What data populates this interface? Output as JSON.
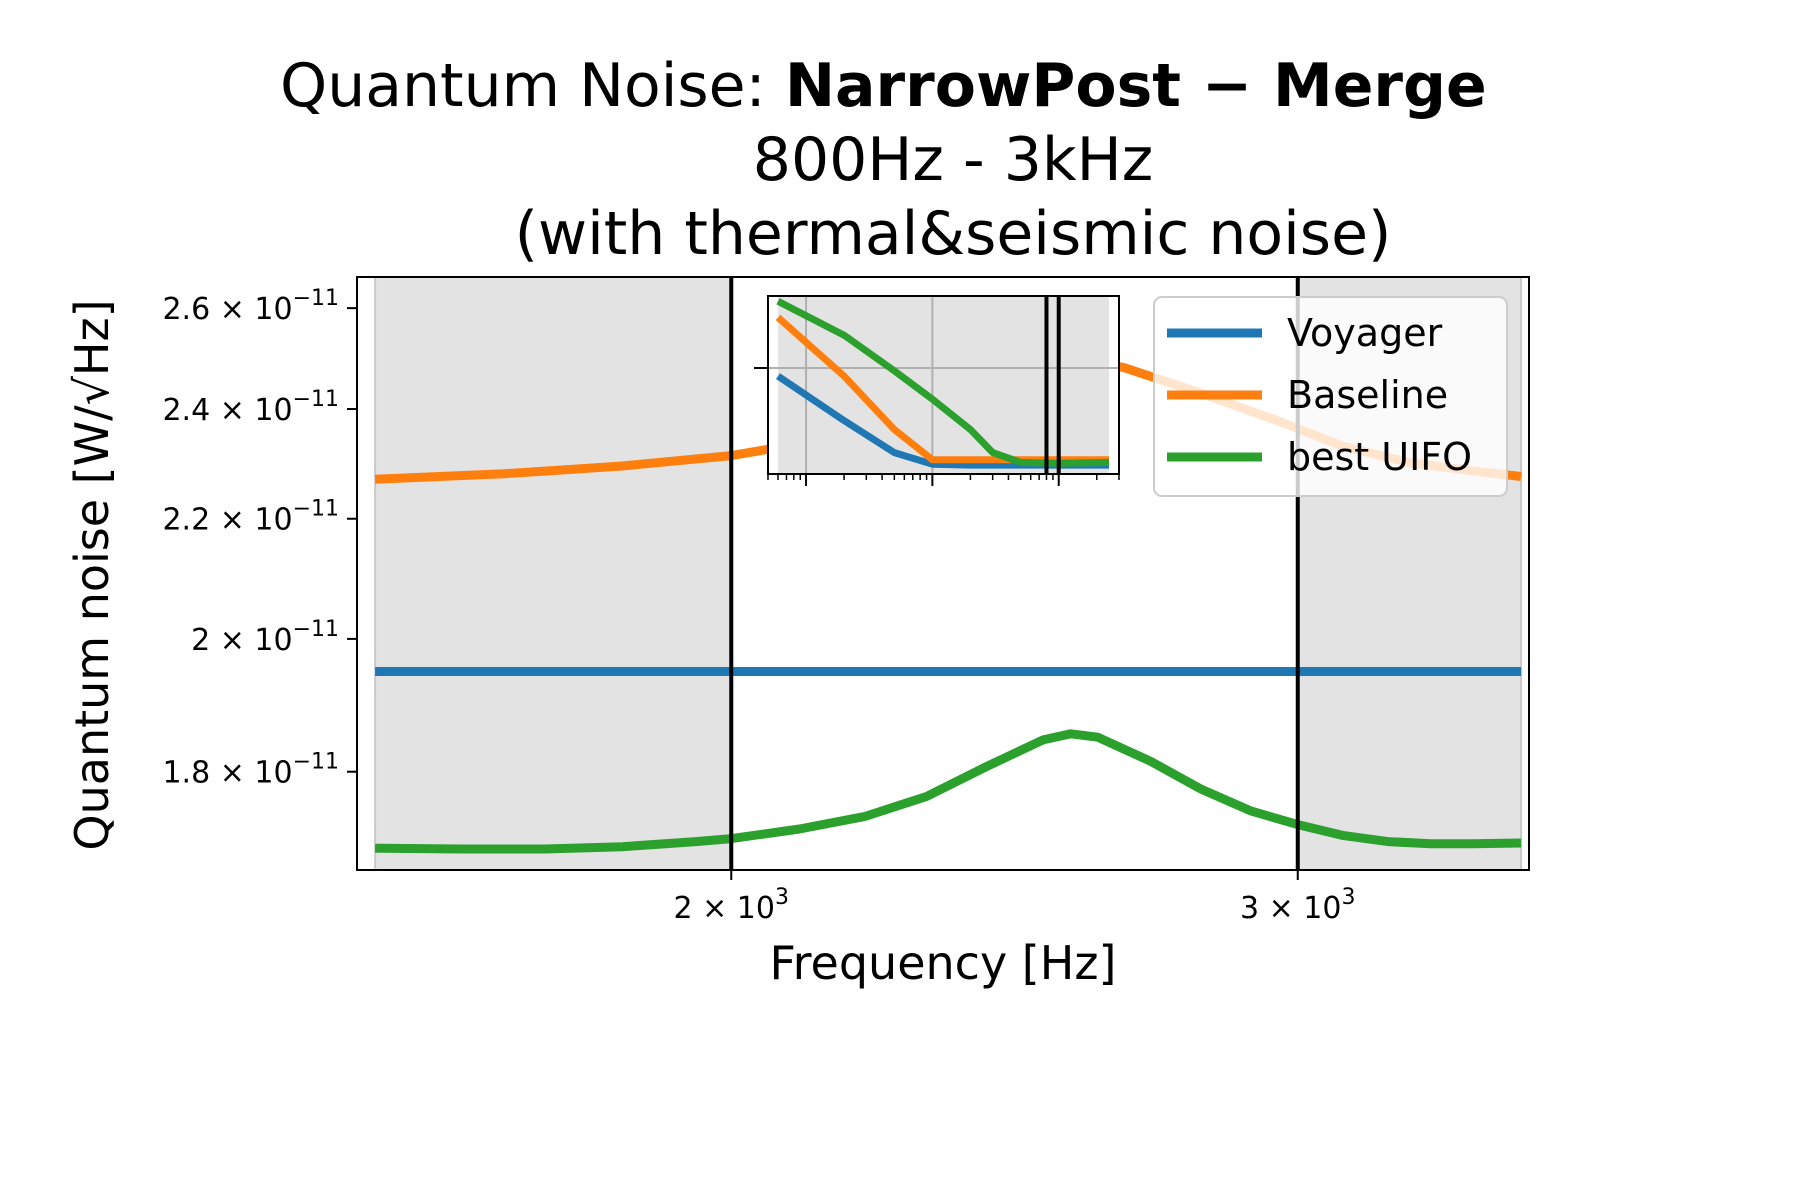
{
  "chart_data": {
    "type": "line",
    "title": {
      "prefix": "Quantum Noise: ",
      "bold": "NarrowPost − Merge",
      "line2": "800Hz - 3kHz",
      "line3": "(with thermal&seismic noise)"
    },
    "xlabel": "Frequency [Hz]",
    "ylabel": "Quantum noise [W/√Hz]",
    "xscale": "log",
    "yscale": "log",
    "xlim": [
      1530,
      3540
    ],
    "ylim": [
      1.665e-11,
      2.665e-11
    ],
    "grid": false,
    "legend_position": "top-right",
    "x_ticks": [
      {
        "value": 2000,
        "base": "2 × 10",
        "exp": "3"
      },
      {
        "value": 3000,
        "base": "3 × 10",
        "exp": "3"
      }
    ],
    "y_ticks": [
      {
        "value": 1.8e-11,
        "base": "1.8 × 10",
        "exp": "−11"
      },
      {
        "value": 2e-11,
        "base": "2 × 10",
        "exp": "−11"
      },
      {
        "value": 2.2e-11,
        "base": "2.2 × 10",
        "exp": "−11"
      },
      {
        "value": 2.4e-11,
        "base": "2.4 × 10",
        "exp": "−11"
      },
      {
        "value": 2.6e-11,
        "base": "2.6 × 10",
        "exp": "−11"
      }
    ],
    "shaded_regions": [
      [
        1550,
        2000
      ],
      [
        3000,
        3520
      ]
    ],
    "vertical_lines": [
      2000,
      3000
    ],
    "series": [
      {
        "name": "Voyager",
        "color": "#1f77b4",
        "x": [
          1550,
          3520
        ],
        "y": [
          1.949e-11,
          1.949e-11
        ]
      },
      {
        "name": "Baseline",
        "color": "#ff7f0e",
        "x": [
          1550,
          1700,
          1850,
          2000,
          2150,
          2300,
          2450,
          2550,
          2650,
          2800,
          2950,
          3100,
          3250,
          3400,
          3520
        ],
        "y": [
          2.27e-11,
          2.28e-11,
          2.294e-11,
          2.313e-11,
          2.345e-11,
          2.4e-11,
          2.46e-11,
          2.5e-11,
          2.48e-11,
          2.43e-11,
          2.38e-11,
          2.33e-11,
          2.3e-11,
          2.285e-11,
          2.275e-11
        ]
      },
      {
        "name": "best UIFO",
        "color": "#2ca02c",
        "x": [
          1550,
          1650,
          1750,
          1850,
          1950,
          2000,
          2100,
          2200,
          2300,
          2400,
          2500,
          2550,
          2600,
          2700,
          2800,
          2900,
          3000,
          3100,
          3200,
          3300,
          3400,
          3520
        ],
        "y": [
          1.694e-11,
          1.693e-11,
          1.693e-11,
          1.696e-11,
          1.703e-11,
          1.707e-11,
          1.72e-11,
          1.737e-11,
          1.765e-11,
          1.807e-11,
          1.846e-11,
          1.855e-11,
          1.85e-11,
          1.815e-11,
          1.775e-11,
          1.745e-11,
          1.726e-11,
          1.711e-11,
          1.703e-11,
          1.7e-11,
          1.7e-11,
          1.701e-11
        ]
      }
    ],
    "inset": {
      "xscale": "log",
      "xlim": [
        5,
        3000
      ],
      "shaded_regions": [
        [
          6,
          2500
        ]
      ],
      "vertical_lines": [
        800,
        1000
      ],
      "series": [
        {
          "name": "Voyager",
          "color": "#1f77b4",
          "x": [
            6,
            20,
            50,
            100,
            200,
            500,
            1000,
            2500
          ],
          "y": [
            0.55,
            0.3,
            0.12,
            0.055,
            0.05,
            0.05,
            0.05,
            0.05
          ]
        },
        {
          "name": "Baseline",
          "color": "#ff7f0e",
          "x": [
            6,
            20,
            50,
            100,
            200,
            500,
            1000,
            2500
          ],
          "y": [
            0.88,
            0.55,
            0.25,
            0.08,
            0.08,
            0.08,
            0.08,
            0.08
          ]
        },
        {
          "name": "best UIFO",
          "color": "#2ca02c",
          "x": [
            6,
            20,
            50,
            100,
            200,
            300,
            500,
            1000,
            2500
          ],
          "y": [
            0.97,
            0.78,
            0.58,
            0.42,
            0.25,
            0.12,
            0.065,
            0.06,
            0.065
          ]
        }
      ]
    }
  }
}
